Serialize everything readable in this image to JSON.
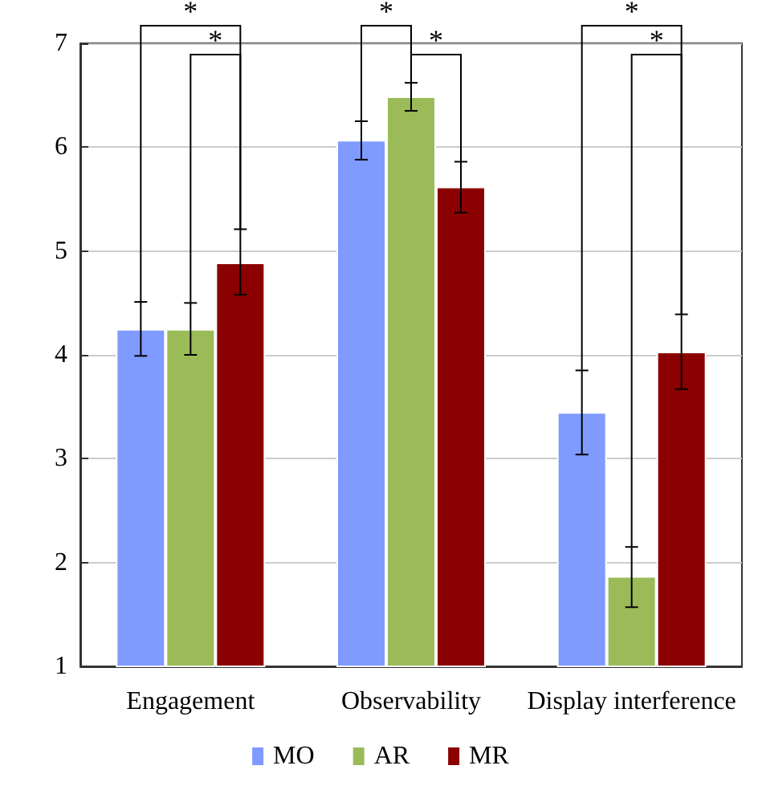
{
  "chart_data": {
    "type": "bar",
    "categories": [
      "Engagement",
      "Observability",
      "Display interference"
    ],
    "series": [
      {
        "name": "MO",
        "color": "#7f9bff",
        "values": [
          4.25,
          6.07,
          3.45
        ],
        "errors": [
          [
            3.99,
            4.51
          ],
          [
            5.88,
            6.25
          ],
          [
            3.04,
            3.85
          ]
        ]
      },
      {
        "name": "AR",
        "color": "#9bbb59",
        "values": [
          4.25,
          6.49,
          1.87
        ],
        "errors": [
          [
            4.0,
            4.5
          ],
          [
            6.35,
            6.62
          ],
          [
            1.57,
            2.15
          ]
        ]
      },
      {
        "name": "MR",
        "color": "#8b0000",
        "values": [
          4.89,
          5.62,
          4.03
        ],
        "errors": [
          [
            4.58,
            5.21
          ],
          [
            5.37,
            5.86
          ],
          [
            3.67,
            4.39
          ]
        ]
      }
    ],
    "ylim": [
      1,
      7
    ],
    "yticks": [
      1,
      2,
      3,
      4,
      5,
      6,
      7
    ],
    "grid": "y",
    "legend": "bottom",
    "annotations": [
      "*",
      "*",
      "*",
      "*",
      "*",
      "*"
    ]
  }
}
